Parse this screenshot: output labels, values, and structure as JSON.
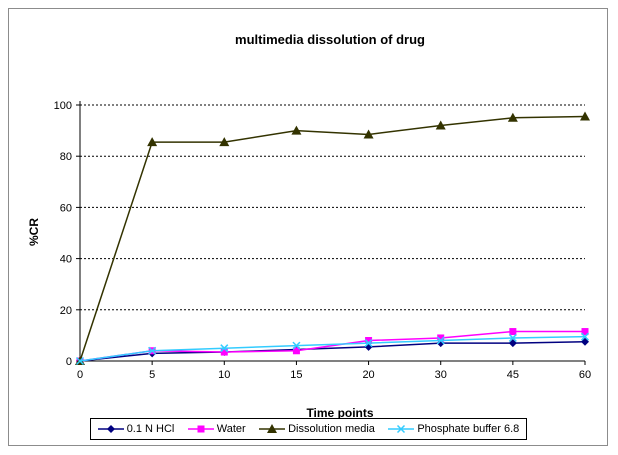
{
  "chart_data": {
    "type": "line",
    "title": "multimedia dissolution of drug",
    "xlabel": "Time points",
    "ylabel": "%CR",
    "categories": [
      "0",
      "5",
      "10",
      "15",
      "20",
      "30",
      "45",
      "60"
    ],
    "ylim": [
      0,
      100
    ],
    "yticks": [
      0,
      20,
      40,
      60,
      80,
      100
    ],
    "grid": "horizontal dotted",
    "legend_position": "bottom",
    "series": [
      {
        "name": "0.1 N HCl",
        "color": "#000080",
        "marker": "diamond",
        "values": [
          0,
          3,
          3.5,
          4.5,
          5.5,
          7,
          7,
          7.5
        ]
      },
      {
        "name": "Water",
        "color": "#ff00ff",
        "marker": "square",
        "values": [
          0,
          4,
          3.5,
          4,
          8,
          9,
          11.5,
          11.5
        ]
      },
      {
        "name": "Dissolution media",
        "color": "#333300",
        "marker": "triangle",
        "values": [
          0,
          85.5,
          85.5,
          90,
          88.5,
          92,
          95,
          95.5
        ]
      },
      {
        "name": "Phosphate buffer 6.8",
        "color": "#33ccff",
        "marker": "x",
        "values": [
          0,
          4,
          5,
          6,
          7,
          8,
          9,
          9.5
        ]
      }
    ]
  }
}
